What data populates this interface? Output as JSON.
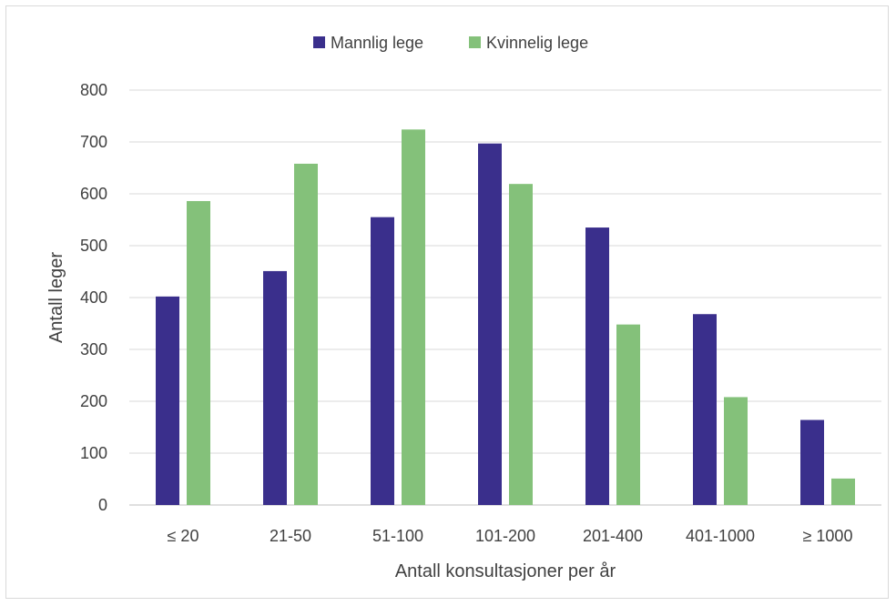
{
  "chart_data": {
    "type": "bar",
    "title": "",
    "xlabel": "Antall konsultasjoner per år",
    "ylabel": "Antall leger",
    "categories": [
      "≤ 20",
      "21-50",
      "51-100",
      "101-200",
      "201-400",
      "401-1000",
      "≥ 1000"
    ],
    "series": [
      {
        "name": "Mannlig lege",
        "color": "#3a2f8c",
        "values": [
          402,
          451,
          555,
          697,
          535,
          368,
          164
        ]
      },
      {
        "name": "Kvinnelig lege",
        "color": "#84c17a",
        "values": [
          586,
          658,
          724,
          619,
          348,
          208,
          51
        ]
      }
    ],
    "ylim": [
      0,
      800
    ],
    "yticks": [
      0,
      100,
      200,
      300,
      400,
      500,
      600,
      700,
      800
    ],
    "grid": true,
    "legend_position": "top"
  }
}
